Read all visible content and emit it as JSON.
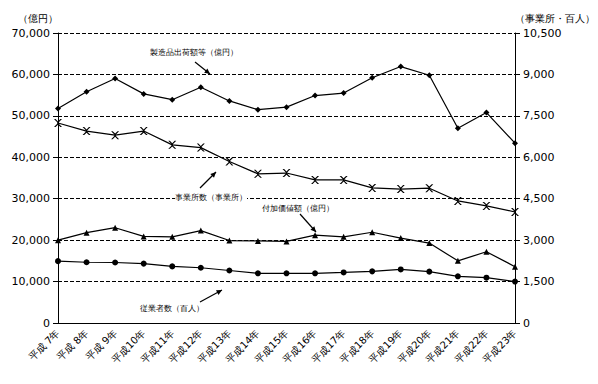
{
  "chart_data": {
    "type": "line",
    "categories": [
      "平成 7年",
      "平成 8年",
      "平成 9年",
      "平成10年",
      "平成11年",
      "平成12年",
      "平成13年",
      "平成14年",
      "平成15年",
      "平成16年",
      "平成17年",
      "平成18年",
      "平成19年",
      "平成20年",
      "平成21年",
      "平成22年",
      "平成23年"
    ],
    "y_label": "（億円）",
    "y2_label": "（事業所・百人）",
    "ylim": [
      0,
      70000
    ],
    "yticks": [
      0,
      {
        "value": 10000,
        "label": "10,000"
      },
      {
        "value": 20000,
        "label": "20,000"
      },
      {
        "value": 30000,
        "label": "30,000"
      },
      {
        "value": 40000,
        "label": "40,000"
      },
      {
        "value": 50000,
        "label": "50,000"
      },
      {
        "value": 60000,
        "label": "60,000"
      },
      {
        "value": 70000,
        "label": "70,000"
      }
    ],
    "y2lim": [
      0,
      10500
    ],
    "y2ticks": [
      0,
      {
        "value": 1500,
        "label": "1,500"
      },
      {
        "value": 3000,
        "label": "3,000"
      },
      {
        "value": 4500,
        "label": "4,500"
      },
      {
        "value": 6000,
        "label": "6,000"
      },
      {
        "value": 7500,
        "label": "7,500"
      },
      {
        "value": 9000,
        "label": "9,000"
      },
      {
        "value": 10500,
        "label": "10,500"
      }
    ],
    "grid": true,
    "series": [
      {
        "name": "製造品出荷額等（億円）",
        "color": "#000000",
        "marker": "diamond",
        "values": [
          51800,
          55800,
          59000,
          55300,
          53900,
          56900,
          53600,
          51500,
          52100,
          54900,
          55500,
          59200,
          61900,
          59800,
          47000,
          50800,
          43400
        ]
      },
      {
        "name": "事業所数（事業所）",
        "color": "#000000",
        "marker": "x",
        "axis": "y2",
        "values": [
          7240,
          6950,
          6800,
          6950,
          6450,
          6350,
          5850,
          5400,
          5430,
          5180,
          5180,
          4890,
          4850,
          4880,
          4420,
          4240,
          4020
        ]
      },
      {
        "name": "付加価値額（億円）",
        "color": "#000000",
        "marker": "triangle",
        "values": [
          20000,
          21800,
          23000,
          20900,
          20800,
          22300,
          19900,
          19800,
          19700,
          21200,
          20800,
          21900,
          20500,
          19300,
          15000,
          17200,
          13600
        ]
      },
      {
        "name": "従業者数（百人）",
        "color": "#000000",
        "marker": "circle",
        "axis": "y2",
        "values": [
          2240,
          2200,
          2190,
          2150,
          2050,
          2000,
          1900,
          1800,
          1800,
          1800,
          1830,
          1870,
          1940,
          1860,
          1690,
          1640,
          1500
        ]
      }
    ]
  }
}
